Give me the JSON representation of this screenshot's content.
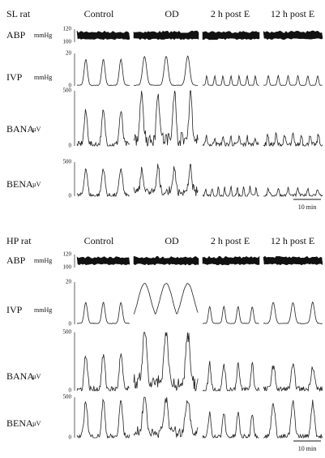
{
  "panels": [
    {
      "title": "SL rat",
      "columns": [
        "Control",
        "OD",
        "2 h post E",
        "12 h post E"
      ],
      "rows": [
        {
          "label": "ABP",
          "unit": "mmHg",
          "ticks": [
            "120",
            "100"
          ]
        },
        {
          "label": "IVP",
          "unit": "mmHg",
          "ticks": [
            "20",
            "0"
          ]
        },
        {
          "label": "BANA",
          "unit": "µV",
          "ticks": [
            "500",
            "0"
          ]
        },
        {
          "label": "BENA",
          "unit": "µV",
          "ticks": [
            "500",
            "0"
          ]
        }
      ],
      "scale_bar": "10 min"
    },
    {
      "title": "HP rat",
      "columns": [
        "Control",
        "OD",
        "2 h post E",
        "12 h post E"
      ],
      "rows": [
        {
          "label": "ABP",
          "unit": "mmHg",
          "ticks": [
            "120",
            "100"
          ]
        },
        {
          "label": "IVP",
          "unit": "mmHg",
          "ticks": [
            "20",
            "0"
          ]
        },
        {
          "label": "BANA",
          "unit": "µV",
          "ticks": [
            "500",
            "0"
          ]
        },
        {
          "label": "BENA",
          "unit": "µV",
          "ticks": [
            "500",
            "0"
          ]
        }
      ],
      "scale_bar": "10 min"
    }
  ]
}
